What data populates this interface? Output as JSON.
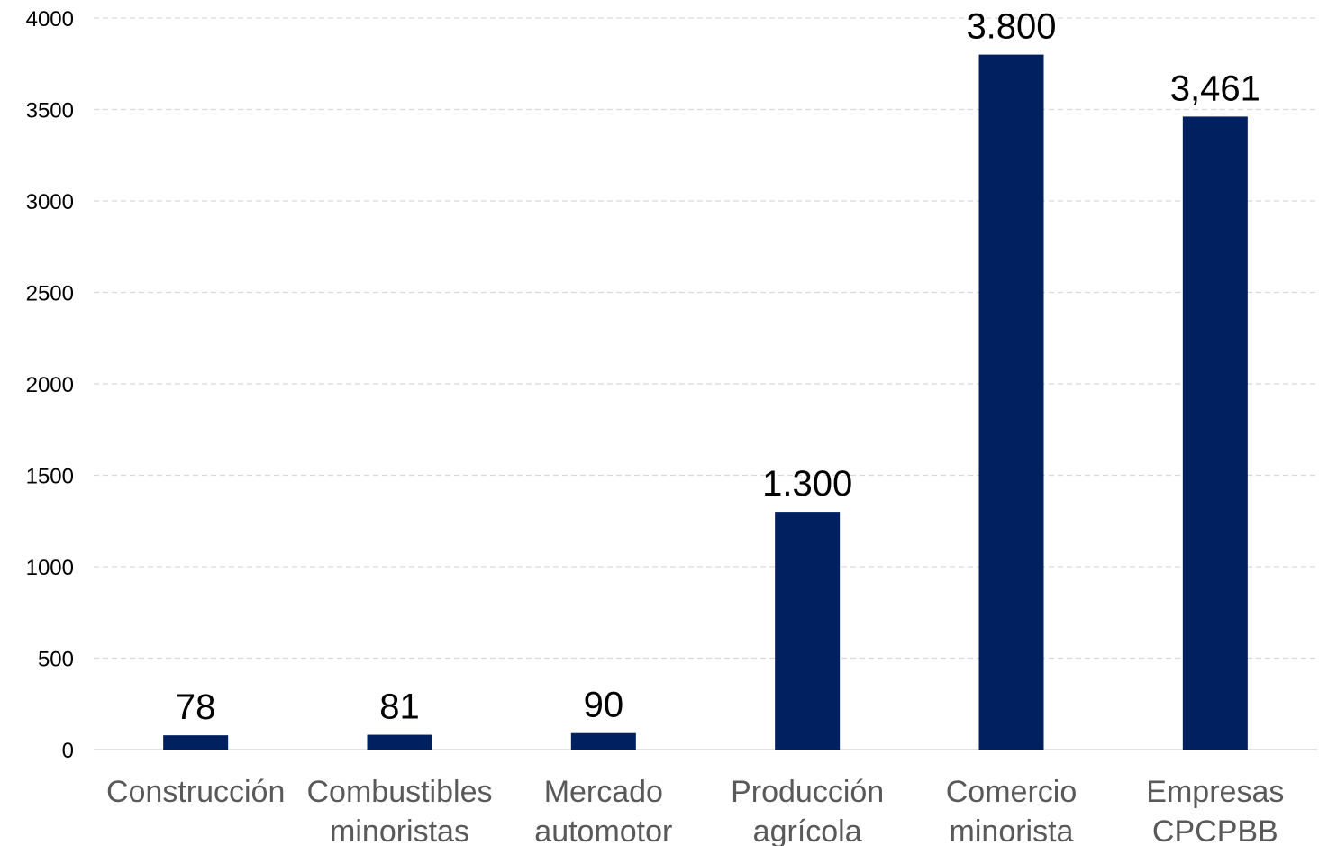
{
  "chart_data": {
    "type": "bar",
    "categories": [
      [
        "Construcción"
      ],
      [
        "Combustibles",
        "minoristas"
      ],
      [
        "Mercado",
        "automotor"
      ],
      [
        "Producción",
        "agrícola"
      ],
      [
        "Comercio",
        "minorista"
      ],
      [
        "Empresas",
        "CPCPBB"
      ]
    ],
    "values": [
      78,
      81,
      90,
      1300,
      3800,
      3461
    ],
    "data_labels": [
      "78",
      "81",
      "90",
      "1.300",
      "3.800",
      "3,461"
    ],
    "ylim": [
      0,
      4000
    ],
    "yticks": [
      "0",
      "500",
      "1000",
      "1500",
      "2000",
      "2500",
      "3000",
      "3500",
      "4000"
    ],
    "grid": true,
    "legend": "none",
    "colors": {
      "bar": "#002060",
      "grid": "#d9d9d9",
      "axis": "#d9d9d9",
      "tick_label": "#595959"
    }
  }
}
